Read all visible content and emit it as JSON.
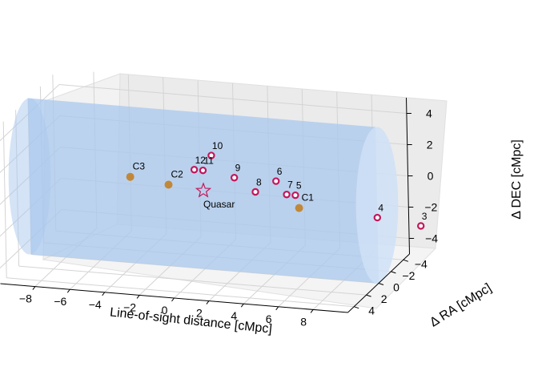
{
  "chart_data": {
    "type": "scatter",
    "projection": "3d",
    "title": "",
    "xlabel": "Line-of-sight distance [cMpc]",
    "ylabel": "Δ RA [cMpc]",
    "zlabel": "Δ DEC [cMpc]",
    "xlim": [
      -10,
      10
    ],
    "ylim": [
      -5,
      5
    ],
    "zlim": [
      -5,
      5
    ],
    "x_ticks": [
      -8,
      -6,
      -4,
      -2,
      0,
      2,
      4,
      6,
      8
    ],
    "y_ticks": [
      -4,
      -2,
      0,
      2,
      4
    ],
    "z_ticks": [
      -4,
      -2,
      0,
      2,
      4
    ],
    "x_tick_labels": [
      "−8",
      "−6",
      "−4",
      "−2",
      "0",
      "2",
      "4",
      "6",
      "8"
    ],
    "y_tick_labels": [
      "−4",
      "−2",
      "0",
      "2",
      "4"
    ],
    "z_tick_labels": [
      "−4",
      "−2",
      "0",
      "2",
      "4"
    ],
    "grid": true,
    "cylinder": {
      "radius": 5,
      "x_range": [
        -10,
        10
      ],
      "color": "#a9c8ee"
    },
    "quasar": {
      "label": "Quasar",
      "x": 0,
      "y": 0,
      "z": 0,
      "color": "#c2185b"
    },
    "galaxies": [
      {
        "label": "10",
        "x": 0.5,
        "y": 0,
        "z": 2.3
      },
      {
        "label": "12",
        "x": -0.5,
        "y": 0,
        "z": 1.3
      },
      {
        "label": "11",
        "x": 0,
        "y": 0,
        "z": 1.3
      },
      {
        "label": "9",
        "x": 1.8,
        "y": 0,
        "z": 1.0
      },
      {
        "label": "6",
        "x": 4.2,
        "y": 0,
        "z": 1.0
      },
      {
        "label": "8",
        "x": 3.0,
        "y": 0,
        "z": 0.2
      },
      {
        "label": "7",
        "x": 4.8,
        "y": 0,
        "z": 0.2
      },
      {
        "label": "5",
        "x": 5.3,
        "y": 0,
        "z": 0.2
      },
      {
        "label": "4",
        "x": 10.0,
        "y": 0,
        "z": -0.8
      },
      {
        "label": "3",
        "x": 12.5,
        "y": 0,
        "z": -1.1
      }
    ],
    "galaxy_style": {
      "fill": "#ffffff",
      "edge": "#c2185b"
    },
    "clusters": [
      {
        "label": "C3",
        "x": -4.2,
        "y": 0,
        "z": 0.5
      },
      {
        "label": "C2",
        "x": -2.0,
        "y": 0,
        "z": 0.2
      },
      {
        "label": "C1",
        "x": 5.5,
        "y": 0,
        "z": -0.6
      }
    ],
    "cluster_color": "#c1883a"
  }
}
